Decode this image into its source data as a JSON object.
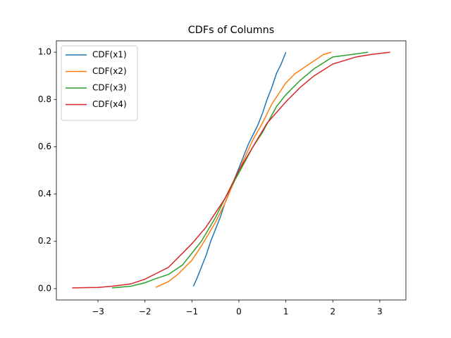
{
  "chart_data": {
    "type": "line",
    "title": "CDFs of Columns",
    "series": [
      {
        "name": "CDF(x1)",
        "color": "#1f77b4",
        "x": [
          -0.97,
          -0.9,
          -0.8,
          -0.7,
          -0.6,
          -0.5,
          -0.4,
          -0.3,
          -0.2,
          -0.1,
          0,
          0.1,
          0.2,
          0.3,
          0.4,
          0.5,
          0.6,
          0.7,
          0.8,
          0.9,
          1.0
        ],
        "values": [
          0.01,
          0.04,
          0.09,
          0.14,
          0.2,
          0.25,
          0.3,
          0.36,
          0.41,
          0.46,
          0.51,
          0.56,
          0.61,
          0.65,
          0.69,
          0.74,
          0.8,
          0.85,
          0.91,
          0.95,
          1.0
        ]
      },
      {
        "name": "CDF(x2)",
        "color": "#ff7f0e",
        "x": [
          -1.77,
          -1.5,
          -1.3,
          -1.2,
          -1.0,
          -0.8,
          -0.5,
          -0.3,
          0,
          0.3,
          0.5,
          0.7,
          1.0,
          1.2,
          1.5,
          1.8,
          1.97
        ],
        "values": [
          0.005,
          0.03,
          0.06,
          0.08,
          0.12,
          0.18,
          0.28,
          0.36,
          0.5,
          0.63,
          0.7,
          0.78,
          0.87,
          0.91,
          0.95,
          0.99,
          1.0
        ]
      },
      {
        "name": "CDF(x3)",
        "color": "#2ca02c",
        "x": [
          -2.7,
          -2.3,
          -2.0,
          -1.8,
          -1.5,
          -1.2,
          -1.0,
          -0.8,
          -0.5,
          -0.3,
          0,
          0.3,
          0.5,
          0.8,
          1.0,
          1.3,
          1.6,
          2.0,
          2.4,
          2.75
        ],
        "values": [
          0.003,
          0.01,
          0.025,
          0.04,
          0.06,
          0.1,
          0.15,
          0.2,
          0.3,
          0.38,
          0.49,
          0.6,
          0.66,
          0.77,
          0.82,
          0.88,
          0.93,
          0.98,
          0.99,
          1.0
        ]
      },
      {
        "name": "CDF(x4)",
        "color": "#d62728",
        "x": [
          -3.55,
          -3.0,
          -2.7,
          -2.3,
          -2.0,
          -1.8,
          -1.5,
          -1.3,
          -1.0,
          -0.7,
          -0.5,
          -0.3,
          0,
          0.3,
          0.6,
          1.0,
          1.3,
          1.6,
          2.0,
          2.5,
          2.8,
          3.22
        ],
        "values": [
          0.003,
          0.005,
          0.01,
          0.02,
          0.04,
          0.06,
          0.09,
          0.13,
          0.19,
          0.26,
          0.32,
          0.38,
          0.5,
          0.6,
          0.7,
          0.79,
          0.85,
          0.9,
          0.95,
          0.98,
          0.99,
          1.0
        ]
      }
    ],
    "xlim": [
      -3.886,
      3.556
    ],
    "ylim": [
      -0.048,
      1.048
    ],
    "xticks": [
      {
        "value": -3,
        "label": "−3"
      },
      {
        "value": -2,
        "label": "−2"
      },
      {
        "value": -1,
        "label": "−1"
      },
      0,
      1,
      2,
      3
    ],
    "yticks": [
      {
        "value": 0,
        "label": "0.0"
      },
      0.2,
      0.4,
      0.6,
      0.8,
      {
        "value": 1,
        "label": "1.0"
      }
    ],
    "grid": false,
    "legend": "upper left"
  }
}
